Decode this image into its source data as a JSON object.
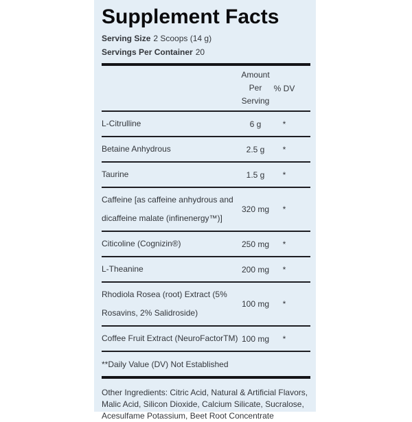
{
  "label": {
    "title": "Supplement Facts",
    "serving_size": {
      "label": "Serving Size",
      "value": "2 Scoops (14 g)"
    },
    "servings_per_container": {
      "label": "Servings Per Container",
      "value": "20"
    },
    "columns": {
      "amount_line1": "Amount",
      "amount_line2": "Per",
      "amount_line3": "Serving",
      "dv": "% DV"
    },
    "rows": [
      {
        "name": "L-Citrulline",
        "amount": "6 g",
        "dv": "*"
      },
      {
        "name": "Betaine Anhydrous",
        "amount": "2.5 g",
        "dv": "*"
      },
      {
        "name": "Taurine",
        "amount": "1.5 g",
        "dv": "*"
      },
      {
        "name": "Caffeine [as caffeine anhydrous and dicaffeine malate (infinenergy™)]",
        "amount": "320 mg",
        "dv": "*"
      },
      {
        "name": "Citicoline (Cognizin®)",
        "amount": "250 mg",
        "dv": "*"
      },
      {
        "name": "L-Theanine",
        "amount": "200 mg",
        "dv": "*"
      },
      {
        "name": "Rhodiola Rosea (root) Extract (5% Rosavins, 2% Salidroside)",
        "amount": "100 mg",
        "dv": "*"
      },
      {
        "name": "Coffee Fruit Extract (NeuroFactorTM)",
        "amount": "100 mg",
        "dv": "*"
      }
    ],
    "footnote": "**Daily Value (DV) Not Established",
    "other_ingredients": "Other Ingredients: Citric Acid, Natural & Artificial Flavors, Malic Acid, Silicon Dioxide, Calcium Silicate, Sucralose, Acesulfame Potassium, Beet Root Concentrate",
    "colors": {
      "panel_bg": "#e4eef6",
      "text": "#33363b",
      "rule": "#1d1d22",
      "title": "#0b0b0d"
    }
  }
}
